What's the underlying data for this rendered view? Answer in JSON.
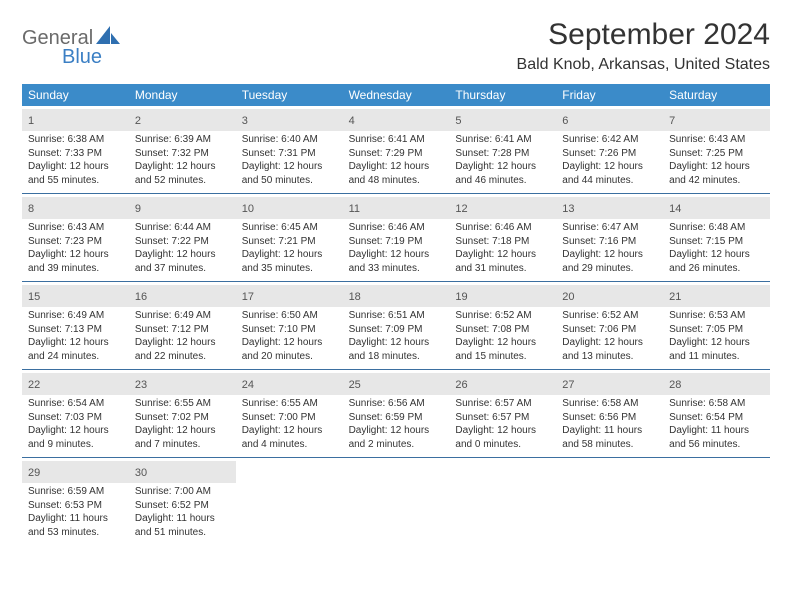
{
  "brand": {
    "main": "General",
    "sub": "Blue"
  },
  "title": "September 2024",
  "location": "Bald Knob, Arkansas, United States",
  "colors": {
    "header_bg": "#3b8bc9",
    "header_text": "#ffffff",
    "band_bg": "#e7e7e7",
    "rule": "#3b6fa0",
    "logo_gray": "#6a6a6a",
    "logo_blue": "#3b7fc4"
  },
  "dow": [
    "Sunday",
    "Monday",
    "Tuesday",
    "Wednesday",
    "Thursday",
    "Friday",
    "Saturday"
  ],
  "weeks": [
    [
      {
        "n": "1",
        "sr": "Sunrise: 6:38 AM",
        "ss": "Sunset: 7:33 PM",
        "d1": "Daylight: 12 hours",
        "d2": "and 55 minutes."
      },
      {
        "n": "2",
        "sr": "Sunrise: 6:39 AM",
        "ss": "Sunset: 7:32 PM",
        "d1": "Daylight: 12 hours",
        "d2": "and 52 minutes."
      },
      {
        "n": "3",
        "sr": "Sunrise: 6:40 AM",
        "ss": "Sunset: 7:31 PM",
        "d1": "Daylight: 12 hours",
        "d2": "and 50 minutes."
      },
      {
        "n": "4",
        "sr": "Sunrise: 6:41 AM",
        "ss": "Sunset: 7:29 PM",
        "d1": "Daylight: 12 hours",
        "d2": "and 48 minutes."
      },
      {
        "n": "5",
        "sr": "Sunrise: 6:41 AM",
        "ss": "Sunset: 7:28 PM",
        "d1": "Daylight: 12 hours",
        "d2": "and 46 minutes."
      },
      {
        "n": "6",
        "sr": "Sunrise: 6:42 AM",
        "ss": "Sunset: 7:26 PM",
        "d1": "Daylight: 12 hours",
        "d2": "and 44 minutes."
      },
      {
        "n": "7",
        "sr": "Sunrise: 6:43 AM",
        "ss": "Sunset: 7:25 PM",
        "d1": "Daylight: 12 hours",
        "d2": "and 42 minutes."
      }
    ],
    [
      {
        "n": "8",
        "sr": "Sunrise: 6:43 AM",
        "ss": "Sunset: 7:23 PM",
        "d1": "Daylight: 12 hours",
        "d2": "and 39 minutes."
      },
      {
        "n": "9",
        "sr": "Sunrise: 6:44 AM",
        "ss": "Sunset: 7:22 PM",
        "d1": "Daylight: 12 hours",
        "d2": "and 37 minutes."
      },
      {
        "n": "10",
        "sr": "Sunrise: 6:45 AM",
        "ss": "Sunset: 7:21 PM",
        "d1": "Daylight: 12 hours",
        "d2": "and 35 minutes."
      },
      {
        "n": "11",
        "sr": "Sunrise: 6:46 AM",
        "ss": "Sunset: 7:19 PM",
        "d1": "Daylight: 12 hours",
        "d2": "and 33 minutes."
      },
      {
        "n": "12",
        "sr": "Sunrise: 6:46 AM",
        "ss": "Sunset: 7:18 PM",
        "d1": "Daylight: 12 hours",
        "d2": "and 31 minutes."
      },
      {
        "n": "13",
        "sr": "Sunrise: 6:47 AM",
        "ss": "Sunset: 7:16 PM",
        "d1": "Daylight: 12 hours",
        "d2": "and 29 minutes."
      },
      {
        "n": "14",
        "sr": "Sunrise: 6:48 AM",
        "ss": "Sunset: 7:15 PM",
        "d1": "Daylight: 12 hours",
        "d2": "and 26 minutes."
      }
    ],
    [
      {
        "n": "15",
        "sr": "Sunrise: 6:49 AM",
        "ss": "Sunset: 7:13 PM",
        "d1": "Daylight: 12 hours",
        "d2": "and 24 minutes."
      },
      {
        "n": "16",
        "sr": "Sunrise: 6:49 AM",
        "ss": "Sunset: 7:12 PM",
        "d1": "Daylight: 12 hours",
        "d2": "and 22 minutes."
      },
      {
        "n": "17",
        "sr": "Sunrise: 6:50 AM",
        "ss": "Sunset: 7:10 PM",
        "d1": "Daylight: 12 hours",
        "d2": "and 20 minutes."
      },
      {
        "n": "18",
        "sr": "Sunrise: 6:51 AM",
        "ss": "Sunset: 7:09 PM",
        "d1": "Daylight: 12 hours",
        "d2": "and 18 minutes."
      },
      {
        "n": "19",
        "sr": "Sunrise: 6:52 AM",
        "ss": "Sunset: 7:08 PM",
        "d1": "Daylight: 12 hours",
        "d2": "and 15 minutes."
      },
      {
        "n": "20",
        "sr": "Sunrise: 6:52 AM",
        "ss": "Sunset: 7:06 PM",
        "d1": "Daylight: 12 hours",
        "d2": "and 13 minutes."
      },
      {
        "n": "21",
        "sr": "Sunrise: 6:53 AM",
        "ss": "Sunset: 7:05 PM",
        "d1": "Daylight: 12 hours",
        "d2": "and 11 minutes."
      }
    ],
    [
      {
        "n": "22",
        "sr": "Sunrise: 6:54 AM",
        "ss": "Sunset: 7:03 PM",
        "d1": "Daylight: 12 hours",
        "d2": "and 9 minutes."
      },
      {
        "n": "23",
        "sr": "Sunrise: 6:55 AM",
        "ss": "Sunset: 7:02 PM",
        "d1": "Daylight: 12 hours",
        "d2": "and 7 minutes."
      },
      {
        "n": "24",
        "sr": "Sunrise: 6:55 AM",
        "ss": "Sunset: 7:00 PM",
        "d1": "Daylight: 12 hours",
        "d2": "and 4 minutes."
      },
      {
        "n": "25",
        "sr": "Sunrise: 6:56 AM",
        "ss": "Sunset: 6:59 PM",
        "d1": "Daylight: 12 hours",
        "d2": "and 2 minutes."
      },
      {
        "n": "26",
        "sr": "Sunrise: 6:57 AM",
        "ss": "Sunset: 6:57 PM",
        "d1": "Daylight: 12 hours",
        "d2": "and 0 minutes."
      },
      {
        "n": "27",
        "sr": "Sunrise: 6:58 AM",
        "ss": "Sunset: 6:56 PM",
        "d1": "Daylight: 11 hours",
        "d2": "and 58 minutes."
      },
      {
        "n": "28",
        "sr": "Sunrise: 6:58 AM",
        "ss": "Sunset: 6:54 PM",
        "d1": "Daylight: 11 hours",
        "d2": "and 56 minutes."
      }
    ],
    [
      {
        "n": "29",
        "sr": "Sunrise: 6:59 AM",
        "ss": "Sunset: 6:53 PM",
        "d1": "Daylight: 11 hours",
        "d2": "and 53 minutes."
      },
      {
        "n": "30",
        "sr": "Sunrise: 7:00 AM",
        "ss": "Sunset: 6:52 PM",
        "d1": "Daylight: 11 hours",
        "d2": "and 51 minutes."
      },
      null,
      null,
      null,
      null,
      null
    ]
  ]
}
